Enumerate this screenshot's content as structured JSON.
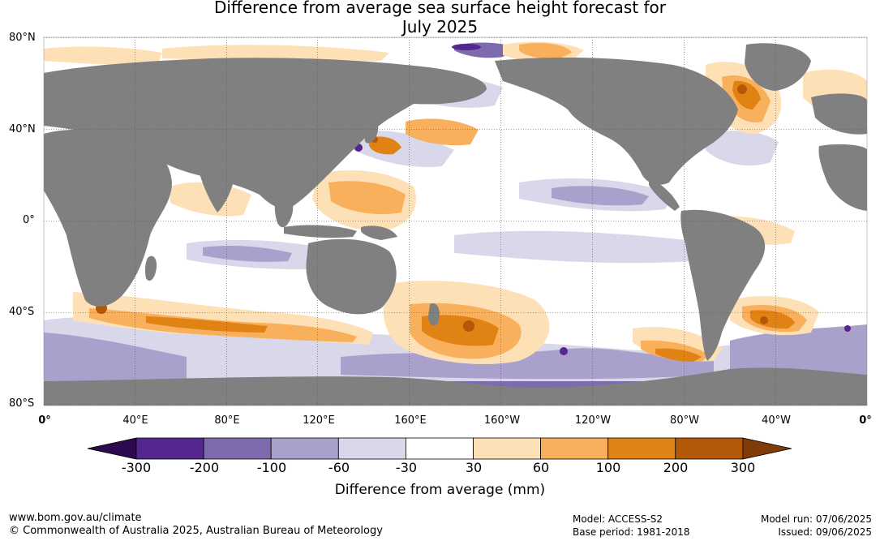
{
  "title": {
    "line1": "Difference from average sea surface height forecast for",
    "line2": "July 2025"
  },
  "map": {
    "lat_labels": [
      "80°N",
      "40°N",
      "0°",
      "40°S",
      "80°S"
    ],
    "lon_labels": [
      "0°",
      "40°E",
      "80°E",
      "120°E",
      "160°E",
      "160°W",
      "120°W",
      "80°W",
      "40°W",
      "0°"
    ],
    "land_color": "#808080",
    "ocean_base_color": "#ffffff"
  },
  "colorbar": {
    "ticks": [
      "-300",
      "-200",
      "-100",
      "-60",
      "-30",
      "30",
      "60",
      "100",
      "200",
      "300"
    ],
    "colors": [
      "#2d0a4e",
      "#54278f",
      "#7e6bad",
      "#a9a1cc",
      "#d9d8ea",
      "#ffffff",
      "#fee0b6",
      "#f9b05c",
      "#e08214",
      "#b35806",
      "#7f3b08"
    ],
    "label": "Difference from average (mm)"
  },
  "footer": {
    "url": "www.bom.gov.au/climate",
    "copyright": "© Commonwealth of Australia 2025, Australian Bureau of Meteorology",
    "model": "Model: ACCESS-S2",
    "base_period": "Base period: 1981-2018",
    "model_run": "Model run: 07/06/2025",
    "issued": "Issued: 09/06/2025"
  }
}
